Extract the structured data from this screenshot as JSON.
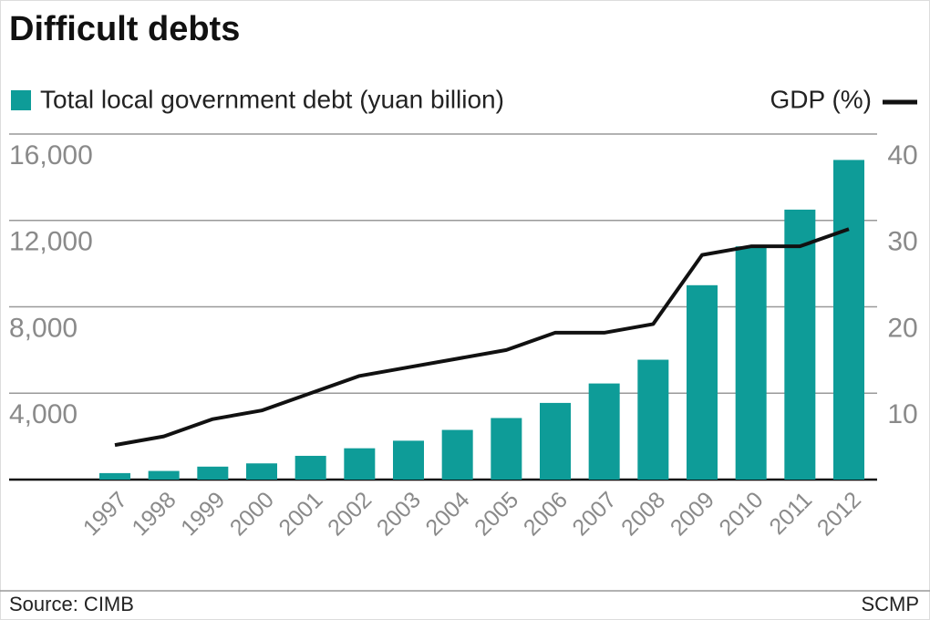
{
  "chart_data": {
    "type": "bar-line",
    "title": "Difficult debts",
    "categories": [
      "1997",
      "1998",
      "1999",
      "2000",
      "2001",
      "2002",
      "2003",
      "2004",
      "2005",
      "2006",
      "2007",
      "2008",
      "2009",
      "2010",
      "2011",
      "2012"
    ],
    "series": [
      {
        "name": "Total local government debt (yuan billion)",
        "type": "bar",
        "color": "#0e9c98",
        "values": [
          300,
          400,
          600,
          750,
          1100,
          1450,
          1800,
          2300,
          2850,
          3550,
          4450,
          5550,
          9000,
          10800,
          12500,
          14800
        ]
      },
      {
        "name": "GDP (%)",
        "type": "line",
        "color": "#111111",
        "axis": "y2",
        "values": [
          4,
          5,
          7,
          8,
          10,
          12,
          13,
          14,
          15,
          17,
          17,
          18,
          26,
          27,
          27,
          29
        ]
      }
    ],
    "ylim": [
      0,
      16000
    ],
    "yticks": [
      {
        "value": 4000,
        "label": "4,000"
      },
      {
        "value": 8000,
        "label": "8,000"
      },
      {
        "value": 12000,
        "label": "12,000"
      },
      {
        "value": 16000,
        "label": "16,000"
      }
    ],
    "y2lim": [
      0,
      40
    ],
    "y2ticks": [
      10,
      20,
      30,
      40
    ],
    "grid": true,
    "source": "Source: CIMB",
    "credit": "SCMP"
  }
}
